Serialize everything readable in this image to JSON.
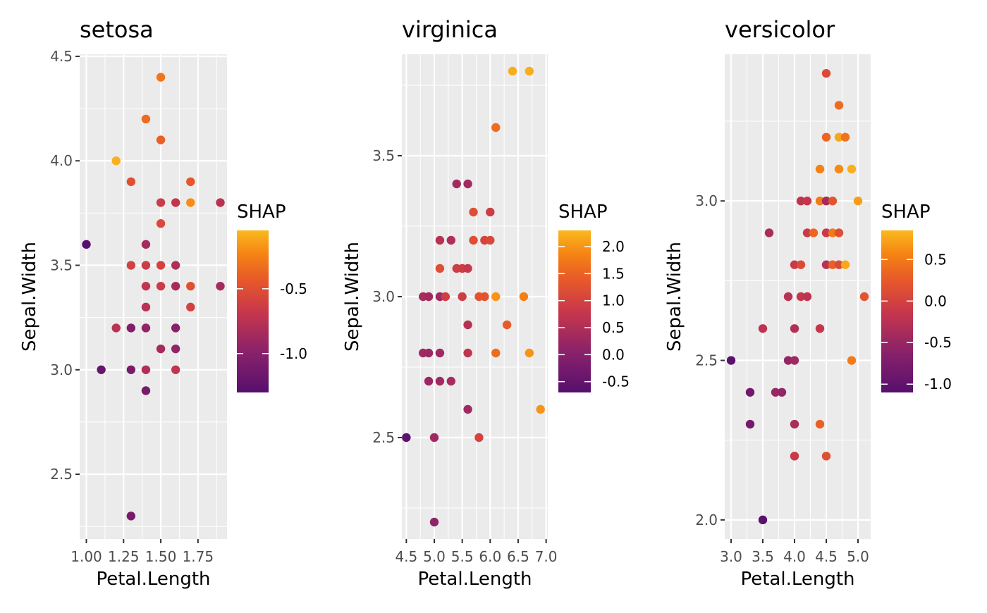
{
  "chart_data": [
    {
      "type": "scatter",
      "title": "setosa",
      "xlabel": "Petal.Length",
      "ylabel": "Sepal.Width",
      "xlim": [
        0.955,
        1.945
      ],
      "ylim": [
        2.19,
        4.51
      ],
      "x_ticks": [
        1.0,
        1.25,
        1.5,
        1.75
      ],
      "x_tick_labels": [
        "1.00",
        "1.25",
        "1.50",
        "1.75"
      ],
      "y_ticks": [
        2.5,
        3.0,
        3.5,
        4.0,
        4.5
      ],
      "y_tick_labels": [
        "2.5",
        "3.0",
        "3.5",
        "4.0",
        "4.5"
      ],
      "legend": {
        "title": "SHAP",
        "placement": "right",
        "min": -1.3,
        "max": -0.05,
        "ticks": [
          -0.5,
          -1.0
        ],
        "tick_labels": [
          "-0.5",
          "-1.0"
        ]
      },
      "points": [
        {
          "x": 1.5,
          "y": 4.4,
          "shap": -0.3
        },
        {
          "x": 1.4,
          "y": 4.2,
          "shap": -0.35
        },
        {
          "x": 1.5,
          "y": 4.1,
          "shap": -0.4
        },
        {
          "x": 1.2,
          "y": 4.0,
          "shap": -0.08
        },
        {
          "x": 1.3,
          "y": 3.9,
          "shap": -0.5
        },
        {
          "x": 1.7,
          "y": 3.9,
          "shap": -0.45
        },
        {
          "x": 1.5,
          "y": 3.8,
          "shap": -0.65
        },
        {
          "x": 1.6,
          "y": 3.8,
          "shap": -0.7
        },
        {
          "x": 1.7,
          "y": 3.8,
          "shap": -0.2
        },
        {
          "x": 1.9,
          "y": 3.8,
          "shap": -0.75
        },
        {
          "x": 1.5,
          "y": 3.7,
          "shap": -0.55
        },
        {
          "x": 1.0,
          "y": 3.6,
          "shap": -1.3
        },
        {
          "x": 1.4,
          "y": 3.6,
          "shap": -0.85
        },
        {
          "x": 1.3,
          "y": 3.5,
          "shap": -0.6
        },
        {
          "x": 1.4,
          "y": 3.5,
          "shap": -0.65
        },
        {
          "x": 1.5,
          "y": 3.5,
          "shap": -0.6
        },
        {
          "x": 1.6,
          "y": 3.5,
          "shap": -0.8
        },
        {
          "x": 1.4,
          "y": 3.4,
          "shap": -0.7
        },
        {
          "x": 1.5,
          "y": 3.4,
          "shap": -0.65
        },
        {
          "x": 1.6,
          "y": 3.4,
          "shap": -0.85
        },
        {
          "x": 1.7,
          "y": 3.4,
          "shap": -0.5
        },
        {
          "x": 1.9,
          "y": 3.4,
          "shap": -0.85
        },
        {
          "x": 1.4,
          "y": 3.3,
          "shap": -0.75
        },
        {
          "x": 1.7,
          "y": 3.3,
          "shap": -0.6
        },
        {
          "x": 1.2,
          "y": 3.2,
          "shap": -0.75
        },
        {
          "x": 1.3,
          "y": 3.2,
          "shap": -1.05
        },
        {
          "x": 1.4,
          "y": 3.2,
          "shap": -0.95
        },
        {
          "x": 1.6,
          "y": 3.2,
          "shap": -1.0
        },
        {
          "x": 1.5,
          "y": 3.1,
          "shap": -0.85
        },
        {
          "x": 1.6,
          "y": 3.1,
          "shap": -0.95
        },
        {
          "x": 1.1,
          "y": 3.0,
          "shap": -1.2
        },
        {
          "x": 1.3,
          "y": 3.0,
          "shap": -1.1
        },
        {
          "x": 1.4,
          "y": 3.0,
          "shap": -0.8
        },
        {
          "x": 1.6,
          "y": 3.0,
          "shap": -0.7
        },
        {
          "x": 1.4,
          "y": 2.9,
          "shap": -1.1
        },
        {
          "x": 1.3,
          "y": 2.3,
          "shap": -1.1
        }
      ]
    },
    {
      "type": "scatter",
      "title": "virginica",
      "xlabel": "Petal.Length",
      "ylabel": "Sepal.Width",
      "xlim": [
        4.42,
        7.03
      ],
      "ylim": [
        2.14,
        3.86
      ],
      "x_ticks": [
        4.5,
        5.0,
        5.5,
        6.0,
        6.5,
        7.0
      ],
      "x_tick_labels": [
        "4.5",
        "5.0",
        "5.5",
        "6.0",
        "6.5",
        "7.0"
      ],
      "y_ticks": [
        2.5,
        3.0,
        3.5
      ],
      "y_tick_labels": [
        "2.5",
        "3.0",
        "3.5"
      ],
      "legend": {
        "title": "SHAP",
        "placement": "right",
        "min": -0.7,
        "max": 2.3,
        "ticks": [
          2.0,
          1.5,
          1.0,
          0.5,
          0.0,
          -0.5
        ],
        "tick_labels": [
          "2.0",
          "1.5",
          "1.0",
          "0.5",
          "0.0",
          "-0.5"
        ]
      },
      "points": [
        {
          "x": 6.7,
          "y": 3.8,
          "shap": 2.2
        },
        {
          "x": 6.4,
          "y": 3.8,
          "shap": 2.2
        },
        {
          "x": 6.1,
          "y": 3.6,
          "shap": 1.6
        },
        {
          "x": 5.4,
          "y": 3.4,
          "shap": 0.35
        },
        {
          "x": 5.6,
          "y": 3.4,
          "shap": 0.35
        },
        {
          "x": 5.7,
          "y": 3.3,
          "shap": 1.2
        },
        {
          "x": 6.0,
          "y": 3.3,
          "shap": 0.9
        },
        {
          "x": 5.1,
          "y": 3.2,
          "shap": 0.6
        },
        {
          "x": 5.3,
          "y": 3.2,
          "shap": 0.5
        },
        {
          "x": 5.7,
          "y": 3.2,
          "shap": 1.2
        },
        {
          "x": 5.9,
          "y": 3.2,
          "shap": 1.0
        },
        {
          "x": 6.0,
          "y": 3.2,
          "shap": 1.1
        },
        {
          "x": 5.1,
          "y": 3.1,
          "shap": 1.2
        },
        {
          "x": 5.4,
          "y": 3.1,
          "shap": 0.9
        },
        {
          "x": 5.5,
          "y": 3.1,
          "shap": 0.9
        },
        {
          "x": 5.6,
          "y": 3.1,
          "shap": 0.8
        },
        {
          "x": 4.8,
          "y": 3.0,
          "shap": 0.4
        },
        {
          "x": 4.9,
          "y": 3.0,
          "shap": 0.35
        },
        {
          "x": 5.1,
          "y": 3.0,
          "shap": 0.3
        },
        {
          "x": 5.2,
          "y": 3.0,
          "shap": 0.9
        },
        {
          "x": 5.5,
          "y": 3.0,
          "shap": 0.9
        },
        {
          "x": 5.8,
          "y": 3.0,
          "shap": 1.3
        },
        {
          "x": 5.9,
          "y": 3.0,
          "shap": 1.3
        },
        {
          "x": 6.1,
          "y": 3.0,
          "shap": 2.0
        },
        {
          "x": 6.6,
          "y": 3.0,
          "shap": 1.8
        },
        {
          "x": 5.6,
          "y": 2.9,
          "shap": 0.6
        },
        {
          "x": 6.3,
          "y": 2.9,
          "shap": 1.4
        },
        {
          "x": 4.8,
          "y": 2.8,
          "shap": 0.3
        },
        {
          "x": 4.9,
          "y": 2.8,
          "shap": 0.25
        },
        {
          "x": 5.1,
          "y": 2.8,
          "shap": 0.3
        },
        {
          "x": 5.6,
          "y": 2.8,
          "shap": 0.7
        },
        {
          "x": 6.1,
          "y": 2.8,
          "shap": 1.6
        },
        {
          "x": 6.7,
          "y": 2.8,
          "shap": 2.0
        },
        {
          "x": 4.9,
          "y": 2.7,
          "shap": 0.25
        },
        {
          "x": 5.1,
          "y": 2.7,
          "shap": 0.3
        },
        {
          "x": 5.3,
          "y": 2.7,
          "shap": 0.4
        },
        {
          "x": 5.6,
          "y": 2.6,
          "shap": 0.3
        },
        {
          "x": 6.9,
          "y": 2.6,
          "shap": 2.0
        },
        {
          "x": 4.5,
          "y": 2.5,
          "shap": -0.6
        },
        {
          "x": 5.0,
          "y": 2.5,
          "shap": 0.3
        },
        {
          "x": 5.8,
          "y": 2.5,
          "shap": 1.0
        },
        {
          "x": 5.0,
          "y": 2.2,
          "shap": 0.1
        }
      ]
    },
    {
      "type": "scatter",
      "title": "versicolor",
      "xlabel": "Petal.Length",
      "ylabel": "Sepal.Width",
      "xlim": [
        2.9,
        5.2
      ],
      "ylim": [
        1.94,
        3.46
      ],
      "x_ticks": [
        3.0,
        3.5,
        4.0,
        4.5,
        5.0
      ],
      "x_tick_labels": [
        "3.0",
        "3.5",
        "4.0",
        "4.5",
        "5.0"
      ],
      "y_ticks": [
        2.0,
        2.5,
        3.0
      ],
      "y_tick_labels": [
        "2.0",
        "2.5",
        "3.0"
      ],
      "legend": {
        "title": "SHAP",
        "placement": "right",
        "min": -1.1,
        "max": 0.85,
        "ticks": [
          0.5,
          0.0,
          -0.5,
          -1.0
        ],
        "tick_labels": [
          "0.5",
          "0.0",
          "-0.5",
          "-1.0"
        ]
      },
      "points": [
        {
          "x": 4.5,
          "y": 3.4,
          "shap": 0.1
        },
        {
          "x": 4.7,
          "y": 3.3,
          "shap": 0.4
        },
        {
          "x": 4.5,
          "y": 3.2,
          "shap": 0.35
        },
        {
          "x": 4.7,
          "y": 3.2,
          "shap": 0.75
        },
        {
          "x": 4.8,
          "y": 3.2,
          "shap": 0.45
        },
        {
          "x": 4.4,
          "y": 3.1,
          "shap": 0.55
        },
        {
          "x": 4.7,
          "y": 3.1,
          "shap": 0.6
        },
        {
          "x": 4.9,
          "y": 3.1,
          "shap": 0.8
        },
        {
          "x": 4.1,
          "y": 3.0,
          "shap": -0.2
        },
        {
          "x": 4.2,
          "y": 3.0,
          "shap": -0.15
        },
        {
          "x": 4.4,
          "y": 3.0,
          "shap": 0.5
        },
        {
          "x": 4.5,
          "y": 3.0,
          "shap": -0.4
        },
        {
          "x": 4.6,
          "y": 3.0,
          "shap": 0.2
        },
        {
          "x": 5.0,
          "y": 3.0,
          "shap": 0.7
        },
        {
          "x": 3.6,
          "y": 2.9,
          "shap": -0.35
        },
        {
          "x": 4.2,
          "y": 2.9,
          "shap": -0.1
        },
        {
          "x": 4.3,
          "y": 2.9,
          "shap": 0.35
        },
        {
          "x": 4.5,
          "y": 2.9,
          "shap": -0.1
        },
        {
          "x": 4.6,
          "y": 2.9,
          "shap": 0.5
        },
        {
          "x": 4.7,
          "y": 2.9,
          "shap": 0.15
        },
        {
          "x": 4.0,
          "y": 2.8,
          "shap": -0.1
        },
        {
          "x": 4.1,
          "y": 2.8,
          "shap": 0.1
        },
        {
          "x": 4.5,
          "y": 2.8,
          "shap": -0.25
        },
        {
          "x": 4.6,
          "y": 2.8,
          "shap": 0.3
        },
        {
          "x": 4.7,
          "y": 2.8,
          "shap": 0.1
        },
        {
          "x": 4.8,
          "y": 2.8,
          "shap": 0.75
        },
        {
          "x": 3.9,
          "y": 2.7,
          "shap": -0.25
        },
        {
          "x": 4.1,
          "y": 2.7,
          "shap": -0.15
        },
        {
          "x": 4.2,
          "y": 2.7,
          "shap": -0.2
        },
        {
          "x": 5.1,
          "y": 2.7,
          "shap": 0.2
        },
        {
          "x": 3.5,
          "y": 2.6,
          "shap": -0.2
        },
        {
          "x": 4.0,
          "y": 2.6,
          "shap": -0.3
        },
        {
          "x": 4.4,
          "y": 2.6,
          "shap": -0.15
        },
        {
          "x": 3.0,
          "y": 2.5,
          "shap": -1.05
        },
        {
          "x": 3.9,
          "y": 2.5,
          "shap": -0.55
        },
        {
          "x": 4.0,
          "y": 2.5,
          "shap": -0.45
        },
        {
          "x": 4.9,
          "y": 2.5,
          "shap": 0.5
        },
        {
          "x": 3.3,
          "y": 2.4,
          "shap": -0.85
        },
        {
          "x": 3.7,
          "y": 2.4,
          "shap": -0.5
        },
        {
          "x": 3.8,
          "y": 2.4,
          "shap": -0.55
        },
        {
          "x": 3.3,
          "y": 2.3,
          "shap": -0.8
        },
        {
          "x": 4.0,
          "y": 2.3,
          "shap": -0.35
        },
        {
          "x": 4.4,
          "y": 2.3,
          "shap": 0.3
        },
        {
          "x": 4.0,
          "y": 2.2,
          "shap": -0.1
        },
        {
          "x": 4.5,
          "y": 2.2,
          "shap": 0.15
        },
        {
          "x": 3.5,
          "y": 2.0,
          "shap": -1.05
        }
      ]
    }
  ]
}
